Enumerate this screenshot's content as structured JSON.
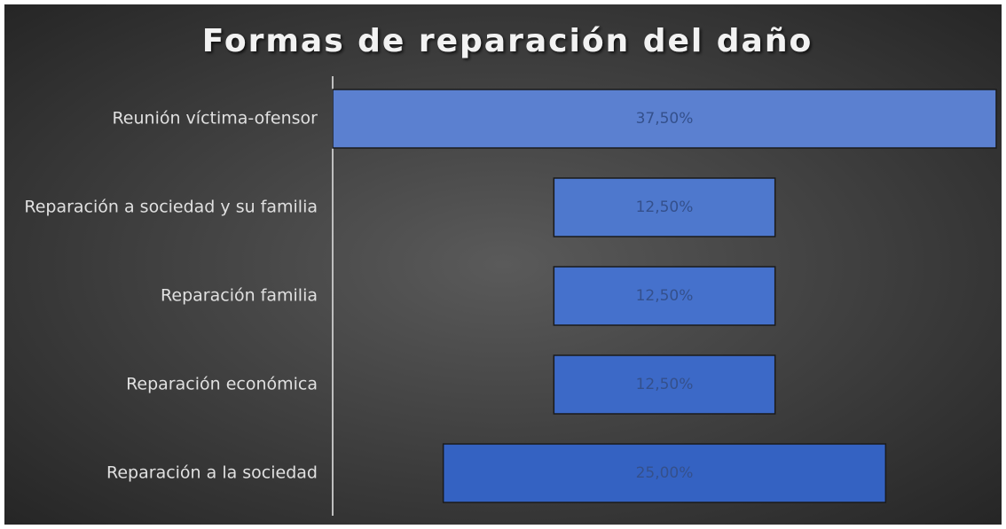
{
  "chart_data": {
    "type": "funnel",
    "title": "Formas de reparación del daño",
    "categories": [
      "Reunión víctima-ofensor",
      "Reparación a sociedad y su familia",
      "Reparación familia",
      "Reparación económica",
      "Reparación a la sociedad"
    ],
    "values": [
      37.5,
      12.5,
      12.5,
      12.5,
      25
    ],
    "value_labels": [
      "37,50%",
      "12,50%",
      "12,50%",
      "12,50%",
      "25,00%"
    ],
    "colors": [
      "#5b80d0",
      "#4e78cd",
      "#4571cc",
      "#3c69c7",
      "#3462c2"
    ]
  }
}
